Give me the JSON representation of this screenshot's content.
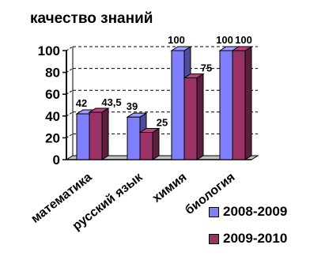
{
  "chart_data": {
    "type": "bar",
    "title": "качество знаний",
    "categories": [
      "математика",
      "русский язык",
      "химия",
      "биология"
    ],
    "series": [
      {
        "name": "2008-2009",
        "values": [
          42,
          39,
          100,
          100
        ],
        "labels": [
          "42",
          "39",
          "100",
          "100"
        ],
        "color": "#8080ff"
      },
      {
        "name": "2009-2010",
        "values": [
          43.5,
          25,
          75,
          100
        ],
        "labels": [
          "43,5",
          "25",
          "75",
          "100"
        ],
        "color": "#993366"
      }
    ],
    "ylim": [
      0,
      100
    ],
    "yticks": [
      "0",
      "20",
      "40",
      "60",
      "80",
      "100"
    ],
    "grid": true,
    "legend_position": "bottom-right",
    "three_d": true
  }
}
